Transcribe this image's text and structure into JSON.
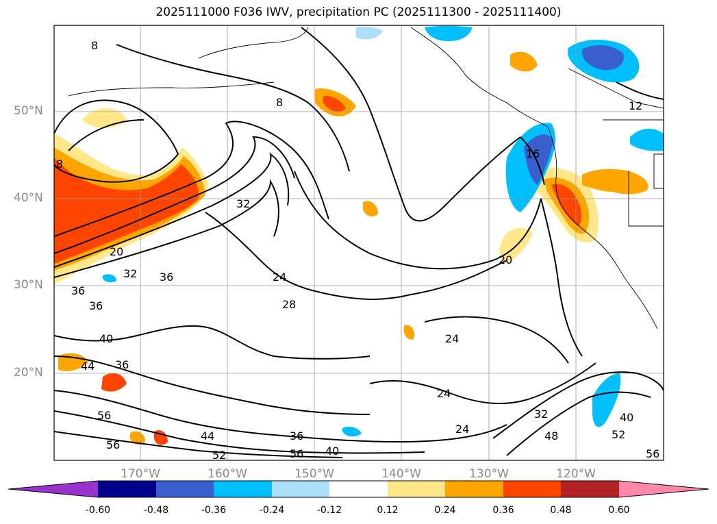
{
  "title": "2025111000 F036 IWV, precipitation PC (2025111300 - 2025111400)",
  "axes": {
    "lat_ticks": [
      "50°N",
      "40°N",
      "30°N",
      "20°N"
    ],
    "lon_ticks": [
      "170°W",
      "160°W",
      "150°W",
      "140°W",
      "130°W",
      "120°W"
    ]
  },
  "contour_labels": [
    "8",
    "8",
    "8",
    "12",
    "16",
    "20",
    "20",
    "24",
    "24",
    "24",
    "24",
    "28",
    "32",
    "32",
    "32",
    "36",
    "36",
    "36",
    "36",
    "36",
    "40",
    "40",
    "40",
    "44",
    "44",
    "48",
    "52",
    "52",
    "56",
    "56",
    "56",
    "56"
  ],
  "colorbar": {
    "labels": [
      "-0.60",
      "-0.48",
      "-0.36",
      "-0.24",
      "-0.12",
      "0.12",
      "0.24",
      "0.36",
      "0.48",
      "0.60"
    ],
    "colors": [
      "#9932CC",
      "#00008B",
      "#3A5FCD",
      "#00BFFF",
      "#ADDFFA",
      "#FFFFFF",
      "#FFE78A",
      "#FFA500",
      "#FF4500",
      "#B22222",
      "#FF88AA"
    ]
  }
}
